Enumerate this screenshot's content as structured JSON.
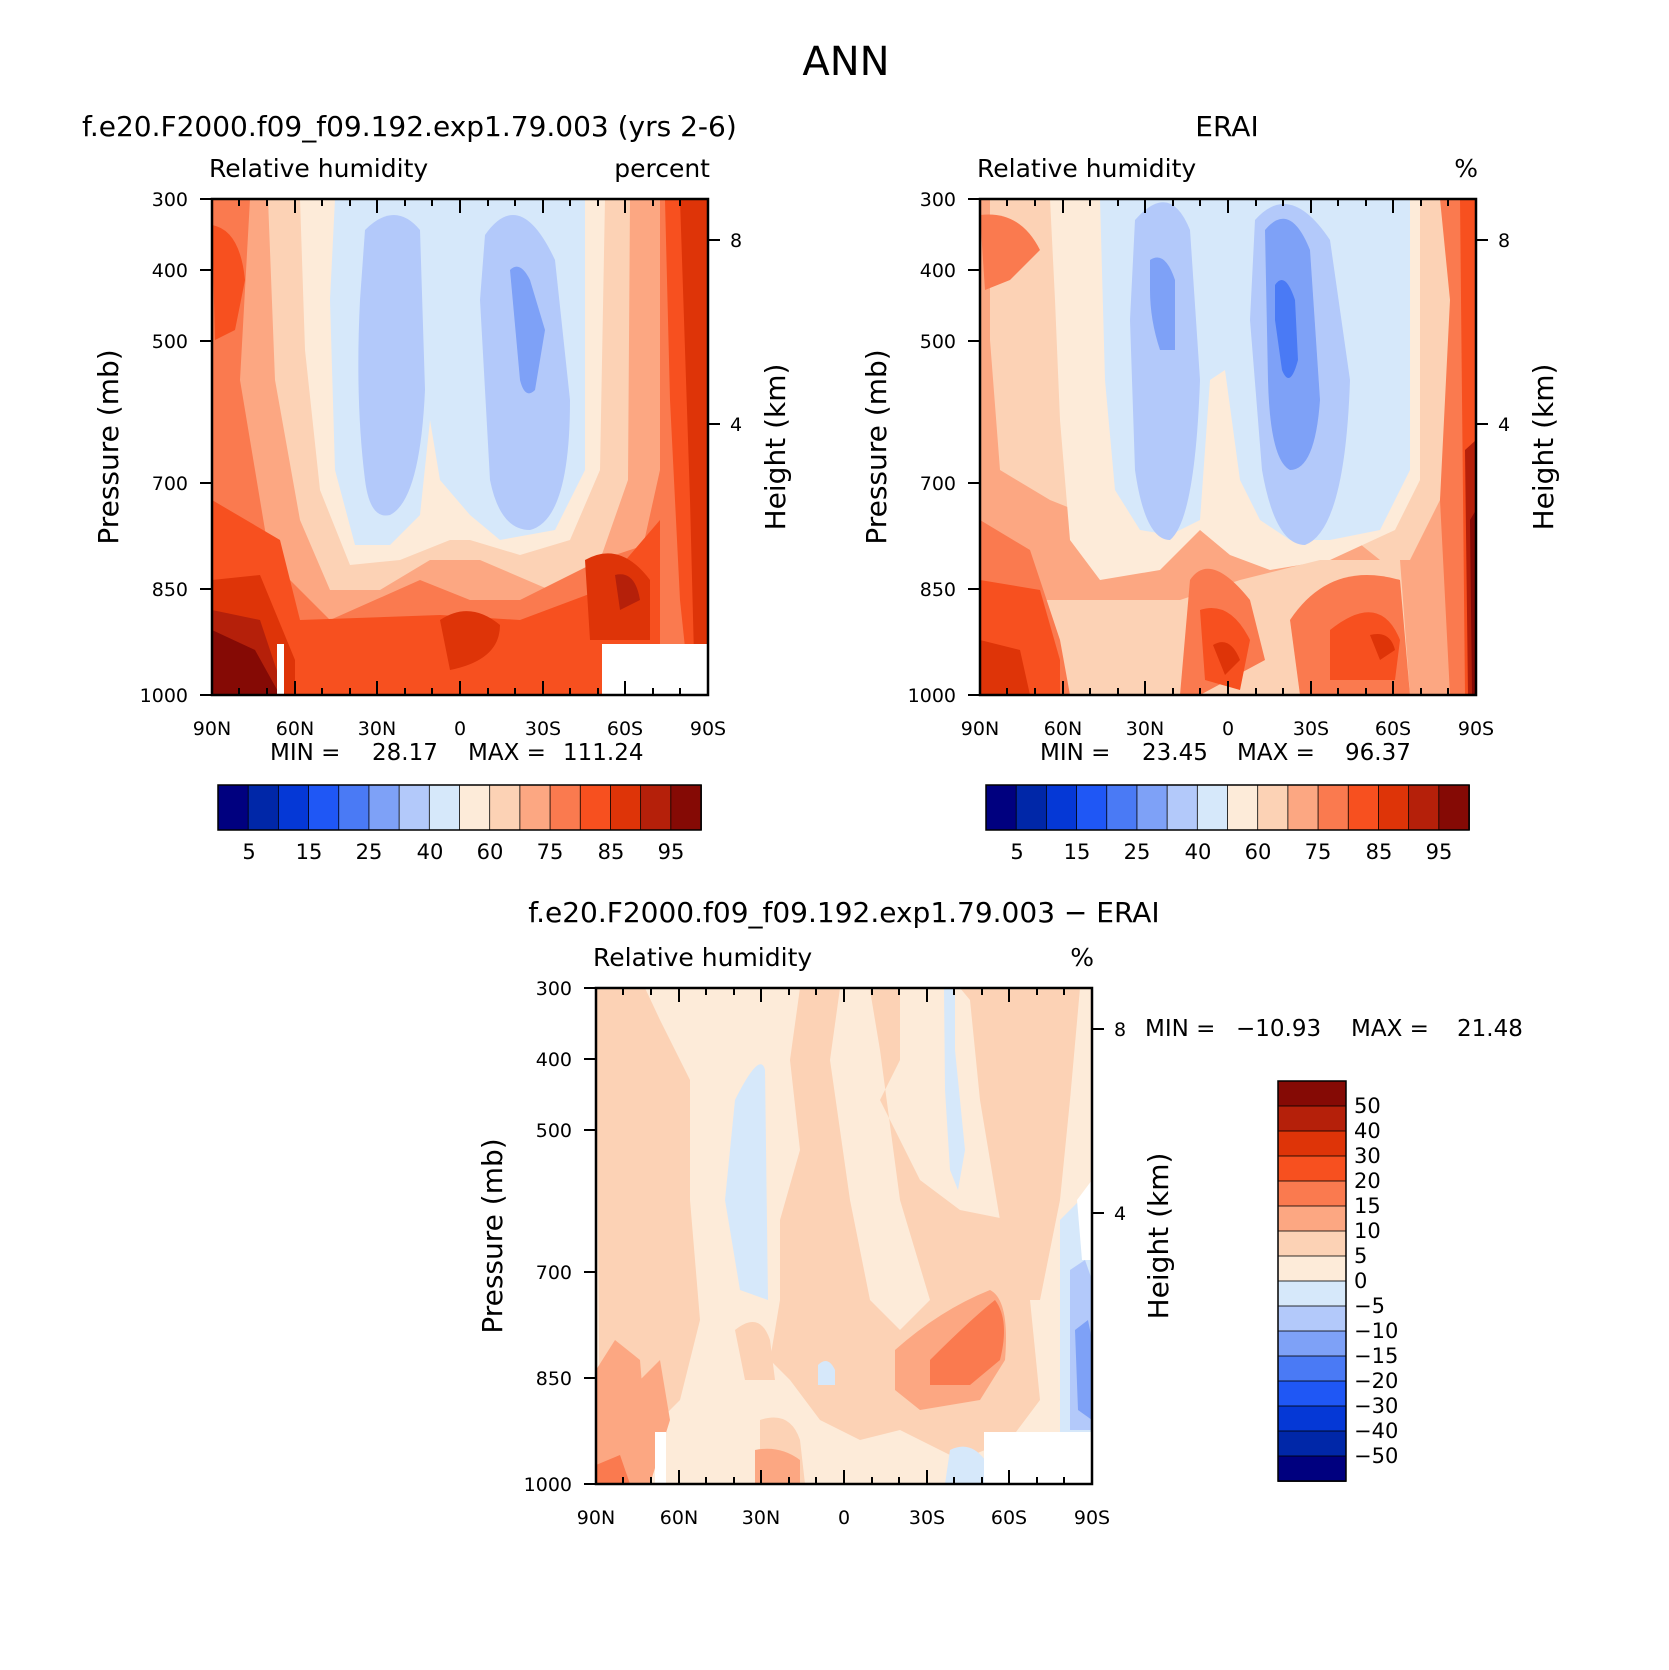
{
  "page_title": "ANN",
  "colors": {
    "abs_levels": [
      "#00007f",
      "#0027a8",
      "#0538d6",
      "#1f57f5",
      "#4a7af5",
      "#7ea1f7",
      "#b3c9fa",
      "#d6e8fa",
      "#fdebd9",
      "#fcd2b5",
      "#fca782",
      "#fa7a4f",
      "#f7501f",
      "#de3408",
      "#b5200a",
      "#850a05"
    ],
    "diff_levels": [
      "#00007f",
      "#0027a8",
      "#0538d6",
      "#1f57f5",
      "#4a7af5",
      "#7ea1f7",
      "#b3c9fa",
      "#d6e8fa",
      "#fdebd9",
      "#fcd2b5",
      "#fca782",
      "#fa7a4f",
      "#f7501f",
      "#de3408",
      "#b5200a",
      "#850a05"
    ]
  },
  "chart_data": [
    {
      "type": "heatmap",
      "title": "f.e20.F2000.f09_f09.192.exp1.79.003 (yrs 2-6)",
      "subtitle_left": "Relative humidity",
      "subtitle_right": "percent",
      "ylabel": "Pressure (mb)",
      "ylabel_right": "Height (km)",
      "x_ticks": [
        "90N",
        "60N",
        "30N",
        "0",
        "30S",
        "60S",
        "90S"
      ],
      "y_ticks": [
        "300",
        "400",
        "500",
        "700",
        "850",
        "1000"
      ],
      "y_right_ticks": [
        "8",
        "4"
      ],
      "ylim": [
        1000,
        300
      ],
      "min_label": "MIN =",
      "min_value": "28.17",
      "max_label": "MAX =",
      "max_value": "111.24",
      "colorbar_labels": [
        "5",
        "15",
        "25",
        "40",
        "60",
        "75",
        "85",
        "95"
      ]
    },
    {
      "type": "heatmap",
      "title": "ERAI",
      "subtitle_left": "Relative humidity",
      "subtitle_right": "%",
      "ylabel": "Pressure (mb)",
      "ylabel_right": "Height (km)",
      "x_ticks": [
        "90N",
        "60N",
        "30N",
        "0",
        "30S",
        "60S",
        "90S"
      ],
      "y_ticks": [
        "300",
        "400",
        "500",
        "700",
        "850",
        "1000"
      ],
      "y_right_ticks": [
        "8",
        "4"
      ],
      "ylim": [
        1000,
        300
      ],
      "min_label": "MIN =",
      "min_value": "23.45",
      "max_label": "MAX =",
      "max_value": "96.37",
      "colorbar_labels": [
        "5",
        "15",
        "25",
        "40",
        "60",
        "75",
        "85",
        "95"
      ]
    },
    {
      "type": "heatmap",
      "title": "f.e20.F2000.f09_f09.192.exp1.79.003 − ERAI",
      "subtitle_left": "Relative humidity",
      "subtitle_right": "%",
      "ylabel": "Pressure (mb)",
      "ylabel_right": "Height (km)",
      "x_ticks": [
        "90N",
        "60N",
        "30N",
        "0",
        "30S",
        "60S",
        "90S"
      ],
      "y_ticks": [
        "300",
        "400",
        "500",
        "700",
        "850",
        "1000"
      ],
      "y_right_ticks": [
        "8",
        "4"
      ],
      "ylim": [
        1000,
        300
      ],
      "min_label": "MIN =",
      "min_value": "−10.93",
      "max_label": "MAX =",
      "max_value": "21.48",
      "colorbar_labels": [
        "50",
        "40",
        "30",
        "20",
        "15",
        "10",
        "5",
        "0",
        "−5",
        "−10",
        "−15",
        "−20",
        "−30",
        "−40",
        "−50"
      ]
    }
  ]
}
